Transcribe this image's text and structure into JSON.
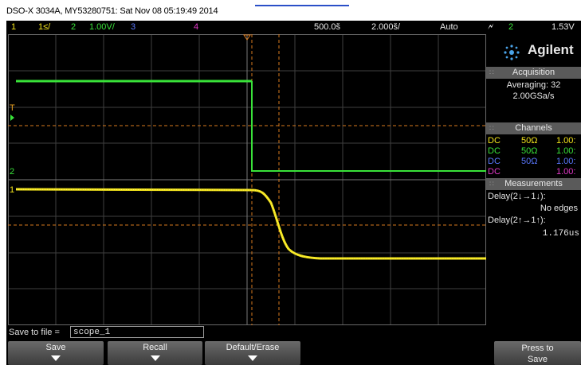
{
  "title": "DSO-X 3034A, MY53280751: Sat Nov 08 05:19:49 2014",
  "topbar": {
    "ch1": "1",
    "ch1_scale": "1≤/",
    "ch2": "2",
    "ch2_scale": "1.00V/",
    "ch3": "3",
    "ch4": "4",
    "timebase": "500.0š",
    "delay": "2.000š/",
    "mode": "Auto",
    "trigger_channel": "2",
    "trigger_level": "1.53V"
  },
  "grid_markers": {
    "t_marker": "T",
    "ch2_marker": "2",
    "ch1_marker": "1"
  },
  "brand": "Agilent",
  "acquisition": {
    "header": "Acquisition",
    "averaging": "Averaging: 32",
    "sample_rate": "2.00GSa/s"
  },
  "channels": {
    "header": "Channels",
    "rows": [
      {
        "coupling": "DC",
        "impedance": "50Ω",
        "scale": "1.00:",
        "color": "#f5e61c"
      },
      {
        "coupling": "DC",
        "impedance": "50Ω",
        "scale": "1.00:",
        "color": "#39e239"
      },
      {
        "coupling": "DC",
        "impedance": "50Ω",
        "scale": "1.00:",
        "color": "#5a78ff"
      },
      {
        "coupling": "DC",
        "impedance": "",
        "scale": "1.00:",
        "color": "#e238c8"
      }
    ]
  },
  "measurements": {
    "header": "Measurements",
    "m1_label": "Delay(2↓→1↓):",
    "m1_value": "No edges",
    "m2_label": "Delay(2↑→1↑):",
    "m2_value": "1.176us"
  },
  "save": {
    "label": "Save to file =",
    "value": "scope_1"
  },
  "softkeys": {
    "save": "Save",
    "recall": "Recall",
    "default_erase": "Default/Erase",
    "press_to_save_1": "Press to",
    "press_to_save_2": "Save"
  },
  "colors": {
    "ch1": "#f5e61c",
    "ch2": "#39e239",
    "ch3": "#5a78ff",
    "ch4": "#e238c8",
    "grid": "#3f3f3f",
    "cursor": "#d87a1e"
  }
}
